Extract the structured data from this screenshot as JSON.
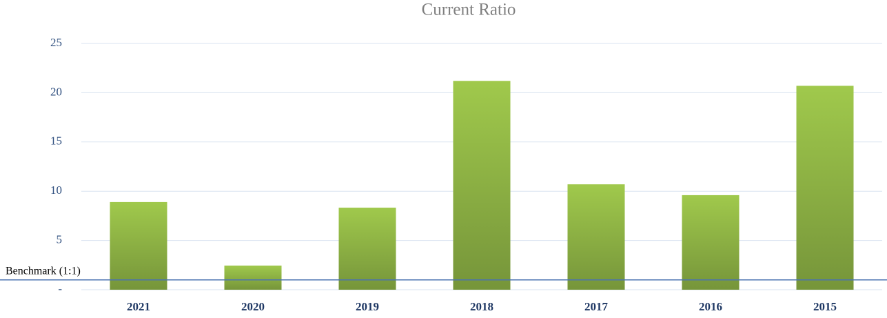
{
  "chart_data": {
    "type": "bar",
    "title": "Current Ratio",
    "categories": [
      "2021",
      "2020",
      "2019",
      "2018",
      "2017",
      "2016",
      "2015"
    ],
    "values": [
      8.9,
      2.45,
      8.33,
      21.2,
      10.7,
      9.6,
      20.7
    ],
    "gradient": [
      "#a0c94c",
      "#76953a"
    ],
    "ylim": [
      0,
      25
    ],
    "yticks": [
      {
        "value": 0,
        "label": "-"
      },
      5,
      10,
      15,
      20,
      25
    ],
    "grid": true,
    "benchmark": {
      "label": "Benchmark (1:1)",
      "value": 1,
      "color": "#4a72b0"
    }
  }
}
